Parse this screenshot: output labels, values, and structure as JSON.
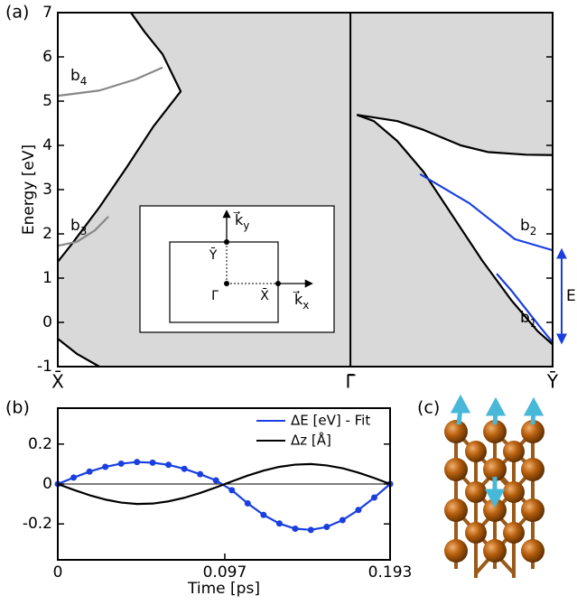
{
  "chart_data": [
    {
      "type": "line",
      "panel_label": "(a)",
      "ylabel": "Energy [eV]",
      "xlim": [
        0,
        1.691
      ],
      "ylim": [
        -1,
        7
      ],
      "xticks": [
        {
          "value": 0,
          "label": "X̄"
        },
        {
          "value": 1,
          "label": "Γ̄"
        },
        {
          "value": 1.691,
          "label": "Ȳ"
        }
      ],
      "yticks": [
        -1,
        0,
        1,
        2,
        3,
        4,
        5,
        6,
        7
      ],
      "vlines_at_ticks": true,
      "shade": "#d9d9d9",
      "series": [
        {
          "color": "#000000",
          "x": [
            0,
            0.049,
            0.142,
            0.235,
            0.327,
            0.42,
            0.358,
            0.296,
            0.25
          ],
          "values": [
            1.37,
            1.78,
            2.6,
            3.5,
            4.43,
            5.22,
            6.06,
            6.57,
            7
          ]
        },
        {
          "color": "#000000",
          "x": [
            0,
            0.065,
            0.142
          ],
          "values": [
            -0.37,
            -0.71,
            -1
          ]
        },
        {
          "color": "#000000",
          "x": [
            1.022,
            1.16,
            1.25,
            1.377,
            1.469,
            1.6,
            1.691
          ],
          "values": [
            4.69,
            4.55,
            4.35,
            4.0,
            3.85,
            3.79,
            3.78
          ]
        },
        {
          "color": "#000000",
          "x": [
            1.022,
            1.08,
            1.16,
            1.25,
            1.35,
            1.45,
            1.55,
            1.64,
            1.691
          ],
          "values": [
            4.69,
            4.55,
            4.1,
            3.4,
            2.4,
            1.4,
            0.5,
            -0.2,
            -0.5
          ]
        },
        {
          "color": "#888888",
          "x": [
            0,
            0.142,
            0.265,
            0.358
          ],
          "values": [
            5.12,
            5.24,
            5.49,
            5.76
          ],
          "label": [
            "b",
            "4"
          ]
        },
        {
          "color": "#888888",
          "x": [
            0,
            0.065,
            0.127,
            0.173
          ],
          "values": [
            1.73,
            1.82,
            2.08,
            2.39
          ],
          "label": [
            "b",
            "3"
          ]
        },
        {
          "color": "#1a3fe0",
          "x": [
            1.238,
            1.407,
            1.562,
            1.691
          ],
          "values": [
            3.35,
            2.69,
            1.88,
            1.63
          ],
          "label": [
            "b",
            "2"
          ]
        },
        {
          "color": "#1a3fe0",
          "x": [
            1.5,
            1.55,
            1.6,
            1.65,
            1.691
          ],
          "values": [
            1.1,
            0.72,
            0.3,
            -0.12,
            -0.45
          ],
          "label": [
            "b",
            "1"
          ]
        }
      ],
      "gap_label": "E",
      "inset": {
        "ky": [
          "k⃗",
          "y"
        ],
        "kx": [
          "k⃗",
          "x"
        ],
        "points": [
          "Ȳ",
          "Γ̄",
          "X̄"
        ]
      }
    },
    {
      "type": "line",
      "panel_label": "(b)",
      "xlabel": "Time [ps]",
      "xlim": [
        0,
        0.193
      ],
      "ylim": [
        -0.38,
        0.38
      ],
      "xticks": [
        0,
        0.097,
        0.193
      ],
      "yticks": [
        -0.2,
        0,
        0.2
      ],
      "zero_line": true,
      "legend": "upper right",
      "x": [
        0,
        0.0092,
        0.0184,
        0.0276,
        0.0368,
        0.046,
        0.0551,
        0.0643,
        0.0735,
        0.0827,
        0.0919,
        0.1011,
        0.1103,
        0.1195,
        0.1287,
        0.1379,
        0.147,
        0.1562,
        0.1654,
        0.1746,
        0.1838,
        0.193
      ],
      "series": [
        {
          "name": "ΔE [eV] - Fit",
          "color": "#1a3fe0",
          "marker": "circle",
          "values": [
            0,
            0.032,
            0.062,
            0.086,
            0.102,
            0.11,
            0.107,
            0.096,
            0.076,
            0.049,
            0.018,
            -0.031,
            -0.097,
            -0.155,
            -0.198,
            -0.224,
            -0.23,
            -0.215,
            -0.181,
            -0.13,
            -0.068,
            0
          ]
        },
        {
          "name": "Δz [Å]",
          "color": "#000000",
          "values": [
            0,
            -0.029,
            -0.056,
            -0.078,
            -0.093,
            -0.1,
            -0.098,
            -0.087,
            -0.069,
            -0.045,
            -0.017,
            0.013,
            0.042,
            0.067,
            0.086,
            0.097,
            0.1,
            0.093,
            0.079,
            0.057,
            0.03,
            0
          ]
        }
      ]
    }
  ],
  "illustration": {
    "label": "(c)"
  }
}
